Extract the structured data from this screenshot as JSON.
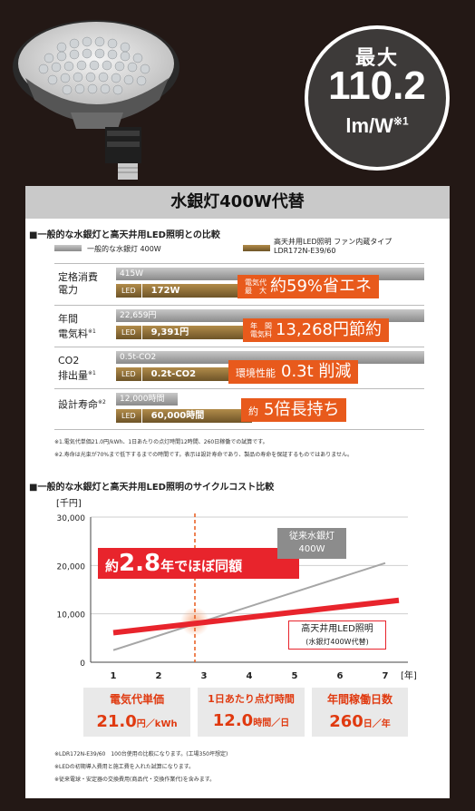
{
  "badge": {
    "line1": "最大",
    "value": "110.2",
    "unit": "lm/W",
    "mark": "※1"
  },
  "panel": {
    "title": "水銀灯400W代替"
  },
  "comparison": {
    "title": "■一般的な水銀灯と高天井用LED照明との比較",
    "legend_mercury": "一般的な水銀灯 400W",
    "legend_led_line1": "高天井用LED照明 ファン内蔵タイプ",
    "legend_led_line2": "LDR172N-E39/60",
    "led_tag": "LED",
    "rows": [
      {
        "label1": "定格消費",
        "label2": "電力",
        "mark": "",
        "mercury": "415W",
        "led": "172W",
        "callout_small1": "電気代",
        "callout_small2": "最　大",
        "callout_text": "約59%省エネ"
      },
      {
        "label1": "年間",
        "label2": "電気料",
        "mark": "※1",
        "mercury": "22,659円",
        "led": "9,391円",
        "callout_small1": "年　間",
        "callout_small2": "電気料",
        "callout_text": "13,268円節約"
      },
      {
        "label1": "CO2",
        "label2": "排出量",
        "mark": "※1",
        "mercury": "0.5t-CO2",
        "led": "0.2t-CO2",
        "callout_small1": "",
        "callout_small2": "",
        "callout_pre": "環境性能",
        "callout_text": "0.3t 削減"
      },
      {
        "label1": "設計寿命",
        "label2": "",
        "mark": "※2",
        "mercury": "12,000時間",
        "led": "60,000時間",
        "callout_small1": "",
        "callout_small2": "",
        "callout_pre": "約",
        "callout_text": "5倍長持ち"
      }
    ],
    "notes": [
      "※1.電気代単価21.0円/kWh、1日あたりの点灯時間12時間、260日稼働での試算です。",
      "※2.寿命は光束が70%まで低下するまでの時間です。表示は設計寿命であり、製品の寿命を保証するものではありません。"
    ]
  },
  "chart_data": {
    "type": "line",
    "title": "■一般的な水銀灯と高天井用LED照明のサイクルコスト比較",
    "ylabel": "[千円]",
    "xlabel": "[年]",
    "ylim": [
      0,
      30000
    ],
    "xlim": [
      0.5,
      7.5
    ],
    "y_ticks": [
      "30,000",
      "20,000",
      "10,000",
      "0"
    ],
    "x_ticks": [
      "1",
      "2",
      "3",
      "4",
      "5",
      "6",
      "7"
    ],
    "series": [
      {
        "name": "従来水銀灯 400W",
        "color": "#a6a6a6",
        "x": [
          1,
          7
        ],
        "y": [
          2500,
          20500
        ]
      },
      {
        "name": "高天井用LED照明 (水銀灯400W代替)",
        "color": "#e8242c",
        "x": [
          1,
          7.3
        ],
        "y": [
          6100,
          12800
        ]
      }
    ],
    "crossover_x": 2.8,
    "annotation": {
      "pre": "約",
      "num": "2.8",
      "post": "年でほぼ同額"
    },
    "mercury_label1": "従来水銀灯",
    "mercury_label2": "400W",
    "led_label1": "高天井用LED照明",
    "led_label2": "(水銀灯400W代替)"
  },
  "infoboxes": [
    {
      "label": "電気代単価",
      "value": "21.0",
      "unit": "円／kWh"
    },
    {
      "label": "1日あたり点灯時間",
      "value": "12.0",
      "unit": "時間／日"
    },
    {
      "label": "年間稼働日数",
      "value": "260",
      "unit": "日／年"
    }
  ],
  "footnotes": [
    "※LDR172N-E39/60　100台使用の比較になります。(工場350坪想定)",
    "※LEDの初期導入費用と施工費を入れた試算になります。",
    "※従来電球・安定器の交換費用(商品代・交換作業代)を含みます。"
  ],
  "colors": {
    "accent": "#e85a1c",
    "red": "#e8242c",
    "gold": "#9a7434",
    "background": "#231815"
  }
}
